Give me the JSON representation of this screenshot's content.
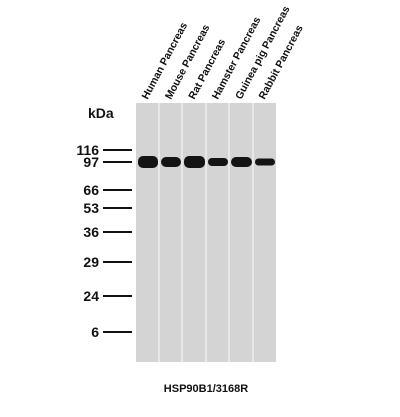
{
  "lanes": [
    "Human Pancreas",
    "Mouse Pancreas",
    "Rat Pancreas",
    "Hamster Pancreas",
    "Guinea pig Pancreas",
    "Rabbit Pancreas"
  ],
  "unit_label": "kDa",
  "markers": [
    "116",
    "97",
    "66",
    "53",
    "36",
    "29",
    "24",
    "6"
  ],
  "caption": "HSP90B1/3168R"
}
